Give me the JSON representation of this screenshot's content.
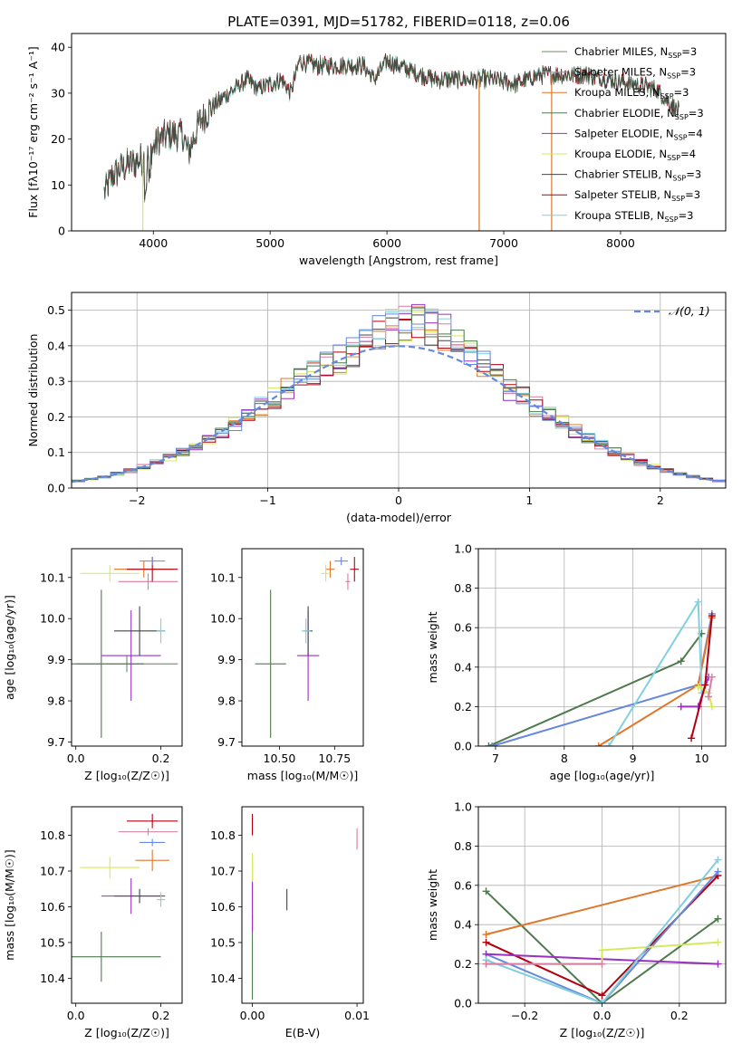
{
  "colors": {
    "chabrier_miles": "#6b8e6b",
    "salpeter_miles": "#d87ca0",
    "kroupa_miles": "#e0762a",
    "chabrier_elodie": "#4e7a4e",
    "salpeter_elodie": "#9b30c0",
    "kroupa_elodie": "#d4e860",
    "chabrier_stelib": "#444444",
    "salpeter_stelib": "#b00010",
    "kroupa_stelib": "#80d0e0",
    "blue_series": "#6688dd",
    "normal_curve": "#6688dd"
  },
  "chart_data": [
    {
      "id": "spectrum",
      "type": "line",
      "title": "PLATE=0391, MJD=51782, FIBERID=0118, z=0.06",
      "xlabel": "wavelength [Angstrom, rest frame]",
      "ylabel": "Flux [fλ10⁻¹⁷ erg cm⁻² s⁻¹ A⁻¹]",
      "xlim": [
        3300,
        8900
      ],
      "ylim": [
        0,
        43
      ],
      "xticks": [
        "4000",
        "5000",
        "6000",
        "7000",
        "8000"
      ],
      "yticks": [
        "0",
        "10",
        "20",
        "30",
        "40"
      ],
      "legend_position": "top-right",
      "legend": [
        "Chabrier MILES, N_SSP=3",
        "Salpeter MILES, N_SSP=3",
        "Kroupa MILES, N_SSP=3",
        "Chabrier ELODIE, N_SSP=3",
        "Salpeter ELODIE, N_SSP=4",
        "Kroupa ELODIE, N_SSP=4",
        "Chabrier STELIB, N_SSP=3",
        "Salpeter STELIB, N_SSP=3",
        "Kroupa STELIB, N_SSP=3"
      ],
      "legend_labels": [
        {
          "pre": "Chabrier MILES, N",
          "sub": "SSP",
          "post": "=3"
        },
        {
          "pre": "Salpeter MILES, N",
          "sub": "SSP",
          "post": "=3"
        },
        {
          "pre": "Kroupa MILES, N",
          "sub": "SSP",
          "post": "=3"
        },
        {
          "pre": "Chabrier ELODIE, N",
          "sub": "SSP",
          "post": "=3"
        },
        {
          "pre": "Salpeter ELODIE, N",
          "sub": "SSP",
          "post": "=4"
        },
        {
          "pre": "Kroupa ELODIE, N",
          "sub": "SSP",
          "post": "=4"
        },
        {
          "pre": "Chabrier STELIB, N",
          "sub": "SSP",
          "post": "=3"
        },
        {
          "pre": "Salpeter STELIB, N",
          "sub": "SSP",
          "post": "=3"
        },
        {
          "pre": "Kroupa STELIB, N",
          "sub": "SSP",
          "post": "=3"
        }
      ],
      "continuum": [
        [
          3580,
          8
        ],
        [
          3650,
          12
        ],
        [
          3750,
          14
        ],
        [
          3850,
          15
        ],
        [
          3950,
          16
        ],
        [
          4050,
          20
        ],
        [
          4150,
          21
        ],
        [
          4250,
          21
        ],
        [
          4300,
          17
        ],
        [
          4400,
          24
        ],
        [
          4500,
          27
        ],
        [
          4600,
          29
        ],
        [
          4700,
          31
        ],
        [
          4800,
          33
        ],
        [
          4900,
          31
        ],
        [
          5000,
          32
        ],
        [
          5100,
          33
        ],
        [
          5175,
          30
        ],
        [
          5250,
          37
        ],
        [
          5400,
          36
        ],
        [
          5600,
          36
        ],
        [
          5800,
          36
        ],
        [
          5890,
          33
        ],
        [
          6000,
          37
        ],
        [
          6200,
          35
        ],
        [
          6400,
          33
        ],
        [
          6563,
          33
        ],
        [
          6700,
          33
        ],
        [
          6900,
          33
        ],
        [
          7100,
          32
        ],
        [
          7300,
          34
        ],
        [
          7500,
          34
        ],
        [
          7700,
          34
        ],
        [
          7900,
          33
        ],
        [
          8100,
          32
        ],
        [
          8300,
          31
        ],
        [
          8500,
          26
        ]
      ]
    },
    {
      "id": "residuals",
      "type": "histogram",
      "xlabel": "(data-model)/error",
      "ylabel": "Normed distribution",
      "xlim": [
        -2.5,
        2.5
      ],
      "ylim": [
        0,
        0.55
      ],
      "xticks": [
        "−2",
        "−1",
        "0",
        "1",
        "2"
      ],
      "yticks": [
        "0.0",
        "0.1",
        "0.2",
        "0.3",
        "0.4",
        "0.5"
      ],
      "grid": true,
      "legend_position": "top-right",
      "legend": [
        "𝒩(0, 1)"
      ]
    },
    {
      "id": "age_vs_Z",
      "type": "errorbar",
      "xlabel": "Z [log₁₀(Z/Z☉)]",
      "ylabel": "age  [log₁₀(age/yr)]",
      "xlim": [
        -0.01,
        0.25
      ],
      "ylim": [
        9.69,
        10.17
      ],
      "xticks": [
        "0.0",
        "0.2"
      ],
      "yticks": [
        "9.7",
        "9.8",
        "9.9",
        "10.0",
        "10.1"
      ],
      "points": [
        {
          "s": "chabrier_miles",
          "x": 0.12,
          "xe": 0.12,
          "y": 9.89,
          "ye": 0.02
        },
        {
          "s": "salpeter_miles",
          "x": 0.17,
          "xe": 0.07,
          "y": 10.09,
          "ye": 0.02
        },
        {
          "s": "kroupa_miles",
          "x": 0.16,
          "xe": 0.07,
          "y": 10.12,
          "ye": 0.02
        },
        {
          "s": "chabrier_elodie",
          "x": 0.06,
          "xe": 0.1,
          "y": 9.89,
          "ye": 0.18
        },
        {
          "s": "salpeter_elodie",
          "x": 0.13,
          "xe": 0.07,
          "y": 9.91,
          "ye": 0.11
        },
        {
          "s": "kroupa_elodie",
          "x": 0.08,
          "xe": 0.07,
          "y": 10.11,
          "ye": 0.02
        },
        {
          "s": "chabrier_stelib",
          "x": 0.15,
          "xe": 0.06,
          "y": 9.97,
          "ye": 0.06
        },
        {
          "s": "salpeter_stelib",
          "x": 0.18,
          "xe": 0.06,
          "y": 10.12,
          "ye": 0.03
        },
        {
          "s": "kroupa_stelib",
          "x": 0.2,
          "xe": 0.01,
          "y": 9.97,
          "ye": 0.03
        },
        {
          "s": "blue_series",
          "x": 0.18,
          "xe": 0.03,
          "y": 10.14,
          "ye": 0.01
        }
      ]
    },
    {
      "id": "age_vs_mass",
      "type": "errorbar",
      "xlabel": "mass [log₁₀(M/M☉)]",
      "ylabel": "",
      "xlim": [
        10.33,
        10.88
      ],
      "ylim": [
        9.69,
        10.17
      ],
      "xticks": [
        "10.50",
        "10.75"
      ],
      "yticks": [
        "9.7",
        "9.8",
        "9.9",
        "10.0",
        "10.1"
      ],
      "points": [
        {
          "s": "chabrier_elodie",
          "x": 10.46,
          "xe": 0.07,
          "y": 9.89,
          "ye": 0.18
        },
        {
          "s": "salpeter_elodie",
          "x": 10.63,
          "xe": 0.05,
          "y": 9.91,
          "ye": 0.11
        },
        {
          "s": "chabrier_stelib",
          "x": 10.63,
          "xe": 0.02,
          "y": 9.97,
          "ye": 0.06
        },
        {
          "s": "kroupa_stelib",
          "x": 10.62,
          "xe": 0.02,
          "y": 9.97,
          "ye": 0.03
        },
        {
          "s": "kroupa_miles",
          "x": 10.73,
          "xe": 0.02,
          "y": 10.12,
          "ye": 0.02
        },
        {
          "s": "kroupa_elodie",
          "x": 10.71,
          "xe": 0.02,
          "y": 10.11,
          "ye": 0.02
        },
        {
          "s": "salpeter_miles",
          "x": 10.81,
          "xe": 0.01,
          "y": 10.09,
          "ye": 0.02
        },
        {
          "s": "salpeter_stelib",
          "x": 10.84,
          "xe": 0.02,
          "y": 10.12,
          "ye": 0.03
        },
        {
          "s": "blue_series",
          "x": 10.78,
          "xe": 0.03,
          "y": 10.14,
          "ye": 0.01
        }
      ]
    },
    {
      "id": "weight_vs_age",
      "type": "line",
      "xlabel": "age  [log₁₀(age/yr)]",
      "ylabel": "mass weight",
      "xlim": [
        6.75,
        10.35
      ],
      "ylim": [
        0,
        1.0
      ],
      "xticks": [
        "7",
        "8",
        "9",
        "10"
      ],
      "yticks": [
        "0.0",
        "0.2",
        "0.4",
        "0.6",
        "0.8",
        "1.0"
      ],
      "grid": true,
      "series": [
        {
          "s": "chabrier_elodie",
          "x": [
            6.9,
            9.7,
            10.0
          ],
          "y": [
            0.0,
            0.43,
            0.57
          ]
        },
        {
          "s": "blue_series",
          "x": [
            6.95,
            9.95,
            10.15
          ],
          "y": [
            0.0,
            0.31,
            0.67
          ]
        },
        {
          "s": "kroupa_miles",
          "x": [
            8.5,
            9.95,
            10.15
          ],
          "y": [
            0.0,
            0.31,
            0.65
          ]
        },
        {
          "s": "kroupa_stelib",
          "x": [
            8.65,
            9.95,
            10.0
          ],
          "y": [
            0.0,
            0.73,
            0.27
          ]
        },
        {
          "s": "salpeter_elodie",
          "x": [
            9.7,
            9.95,
            10.1
          ],
          "y": [
            0.2,
            0.2,
            0.35
          ]
        },
        {
          "s": "kroupa_elodie",
          "x": [
            9.95,
            10.1,
            10.15
          ],
          "y": [
            0.3,
            0.27,
            0.2
          ]
        },
        {
          "s": "salpeter_stelib",
          "x": [
            9.85,
            10.05,
            10.15
          ],
          "y": [
            0.04,
            0.31,
            0.66
          ]
        },
        {
          "s": "salpeter_miles",
          "x": [
            10.1,
            10.15
          ],
          "y": [
            0.25,
            0.35
          ]
        }
      ]
    },
    {
      "id": "mass_vs_Z",
      "type": "errorbar",
      "xlabel": "Z [log₁₀(Z/Z☉)]",
      "ylabel": "mass [log₁₀(M/M☉)]",
      "xlim": [
        -0.01,
        0.25
      ],
      "ylim": [
        10.33,
        10.88
      ],
      "xticks": [
        "0.0",
        "0.2"
      ],
      "yticks": [
        "10.4",
        "10.5",
        "10.6",
        "10.7",
        "10.8"
      ],
      "points": [
        {
          "s": "chabrier_elodie",
          "x": 0.06,
          "xe": 0.14,
          "y": 10.46,
          "ye": 0.07
        },
        {
          "s": "salpeter_elodie",
          "x": 0.13,
          "xe": 0.07,
          "y": 10.63,
          "ye": 0.05
        },
        {
          "s": "chabrier_stelib",
          "x": 0.15,
          "xe": 0.06,
          "y": 10.63,
          "ye": 0.02
        },
        {
          "s": "kroupa_stelib",
          "x": 0.2,
          "xe": 0.01,
          "y": 10.62,
          "ye": 0.02
        },
        {
          "s": "kroupa_elodie",
          "x": 0.08,
          "xe": 0.07,
          "y": 10.71,
          "ye": 0.03
        },
        {
          "s": "kroupa_miles",
          "x": 0.18,
          "xe": 0.04,
          "y": 10.73,
          "ye": 0.03
        },
        {
          "s": "blue_series",
          "x": 0.18,
          "xe": 0.03,
          "y": 10.78,
          "ye": 0.01
        },
        {
          "s": "salpeter_miles",
          "x": 0.17,
          "xe": 0.07,
          "y": 10.81,
          "ye": 0.01
        },
        {
          "s": "salpeter_stelib",
          "x": 0.18,
          "xe": 0.06,
          "y": 10.84,
          "ye": 0.02
        }
      ]
    },
    {
      "id": "mass_vs_ebv",
      "type": "errorbar",
      "xlabel": "E(B-V)",
      "ylabel": "",
      "xlim": [
        -0.001,
        0.0106
      ],
      "ylim": [
        10.33,
        10.88
      ],
      "xticks": [
        "0.00",
        "0.01"
      ],
      "yticks": [
        "10.4",
        "10.5",
        "10.6",
        "10.7",
        "10.8"
      ],
      "points": [
        {
          "s": "chabrier_elodie",
          "x": 0.0,
          "xe": 0,
          "y": 10.46,
          "ye": 0.12
        },
        {
          "s": "salpeter_elodie",
          "x": 0.0,
          "xe": 0,
          "y": 10.63,
          "ye": 0.1
        },
        {
          "s": "kroupa_elodie",
          "x": 0.0,
          "xe": 0,
          "y": 10.71,
          "ye": 0.04
        },
        {
          "s": "salpeter_stelib",
          "x": 0.0,
          "xe": 0,
          "y": 10.83,
          "ye": 0.03
        },
        {
          "s": "chabrier_stelib",
          "x": 0.0033,
          "xe": 0,
          "y": 10.62,
          "ye": 0.03
        },
        {
          "s": "salpeter_miles",
          "x": 0.01,
          "xe": 0,
          "y": 10.79,
          "ye": 0.03
        }
      ]
    },
    {
      "id": "weight_vs_Z",
      "type": "line",
      "xlabel": "Z [log₁₀(Z/Z☉)]",
      "ylabel": "mass weight",
      "xlim": [
        -0.32,
        0.32
      ],
      "ylim": [
        0,
        1.0
      ],
      "xticks": [
        "−0.2",
        "0.0",
        "0.2"
      ],
      "yticks": [
        "0.0",
        "0.2",
        "0.4",
        "0.6",
        "0.8",
        "1.0"
      ],
      "grid": true,
      "series": [
        {
          "s": "chabrier_elodie",
          "x": [
            -0.3,
            0.0,
            0.3
          ],
          "y": [
            0.57,
            0.0,
            0.43
          ]
        },
        {
          "s": "kroupa_miles",
          "x": [
            -0.3,
            0.3
          ],
          "y": [
            0.35,
            0.65
          ]
        },
        {
          "s": "salpeter_stelib",
          "x": [
            -0.3,
            0.0,
            0.3
          ],
          "y": [
            0.31,
            0.04,
            0.65
          ]
        },
        {
          "s": "blue_series",
          "x": [
            -0.3,
            0.0,
            0.3
          ],
          "y": [
            0.25,
            0.0,
            0.67
          ]
        },
        {
          "s": "salpeter_elodie",
          "x": [
            -0.3,
            0.3
          ],
          "y": [
            0.25,
            0.2
          ]
        },
        {
          "s": "kroupa_elodie",
          "x": [
            -0.3,
            0.0,
            0.0,
            0.3
          ],
          "y": [
            0.2,
            0.2,
            0.27,
            0.31
          ]
        },
        {
          "s": "kroupa_stelib",
          "x": [
            -0.3,
            0.0,
            0.3
          ],
          "y": [
            0.22,
            0.0,
            0.73
          ]
        },
        {
          "s": "salpeter_miles",
          "x": [
            -0.3,
            0.0
          ],
          "y": [
            0.2,
            0.2
          ]
        }
      ]
    }
  ]
}
